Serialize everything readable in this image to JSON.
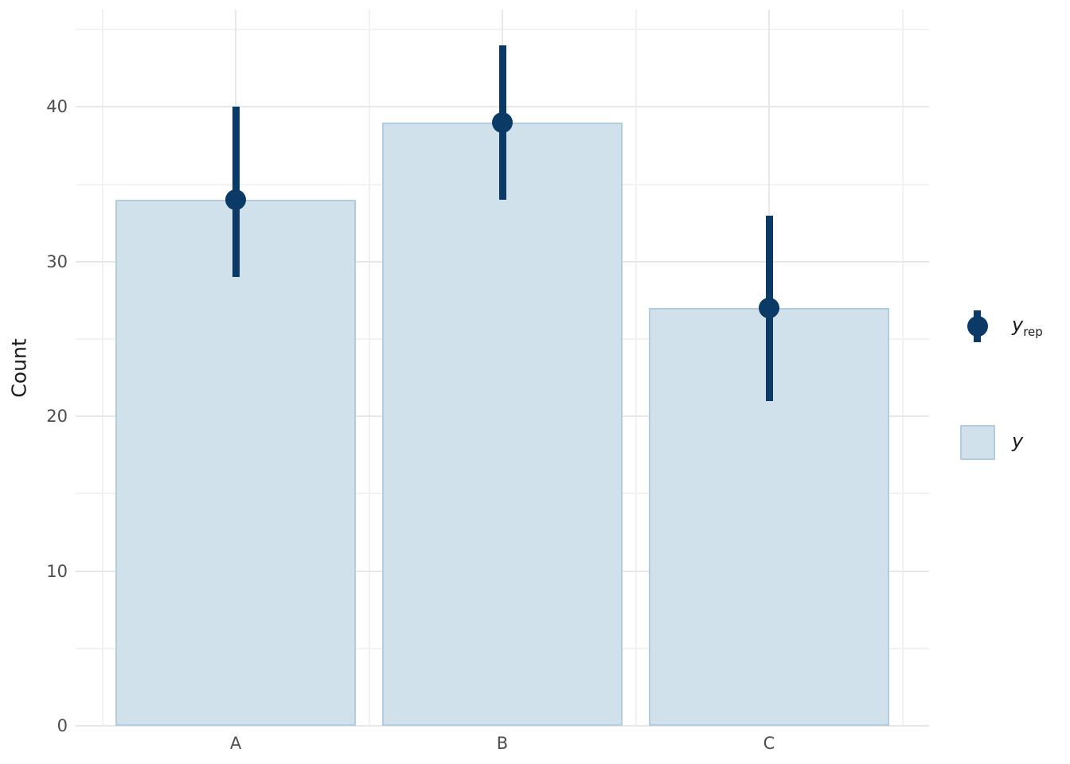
{
  "figure": {
    "kind": "bayesplot-ppc-bars",
    "y_axis_title": "Count"
  },
  "chart_data": {
    "type": "bar",
    "title": "",
    "xlabel": "",
    "ylabel": "Count",
    "categories": [
      "A",
      "B",
      "C"
    ],
    "series": [
      {
        "name": "y",
        "type": "bar",
        "values": [
          34,
          39,
          27
        ]
      },
      {
        "name": "y_rep",
        "type": "pointrange",
        "points": [
          34,
          39,
          27
        ],
        "lower": [
          29,
          34,
          21
        ],
        "upper": [
          40,
          44,
          33
        ]
      }
    ],
    "ylim": [
      0,
      46.3
    ],
    "yticks_major": [
      0,
      10,
      20,
      30,
      40
    ],
    "yticks_minor": [
      5,
      15,
      25,
      35,
      45
    ],
    "grid": true,
    "legend_position": "right",
    "bar_width_fraction": 0.9
  },
  "legend": {
    "entries": [
      {
        "id": "y_rep",
        "main": "y",
        "sub": "rep",
        "glyph": "pointrange-icon"
      },
      {
        "id": "y",
        "main": "y",
        "sub": "",
        "glyph": "bar-swatch-icon"
      }
    ]
  },
  "colors": {
    "background": "#ffffff",
    "bar_fill": "#d1e1ec",
    "bar_border": "#b3cde0",
    "pointrange": "#0b3a66",
    "grid_major": "#e8e8e8",
    "grid_minor": "#f2f2f2",
    "tick_text": "#4d4d4d",
    "axis_title": "#1a1a1a"
  }
}
